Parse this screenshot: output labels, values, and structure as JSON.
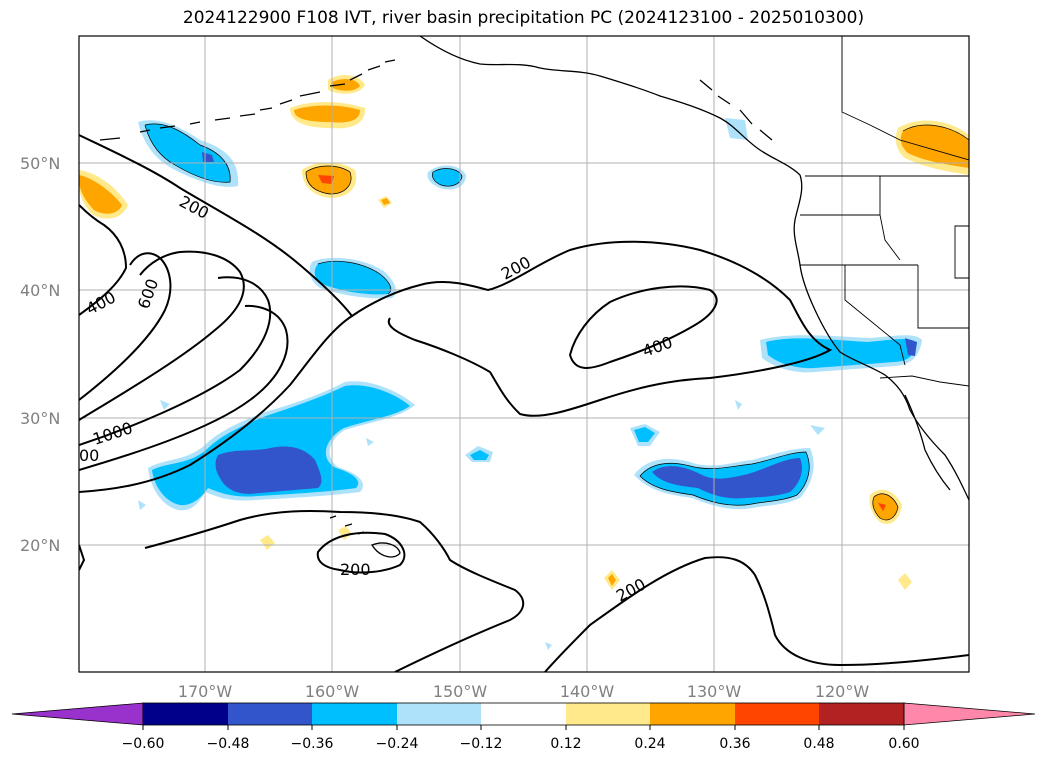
{
  "title": "2024122900 F108 IVT, river basin precipitation PC (2024123100 - 2025010300)",
  "lat_labels": [
    "50°N",
    "40°N",
    "30°N",
    "20°N"
  ],
  "lon_labels": [
    "170°W",
    "160°W",
    "150°W",
    "140°W",
    "130°W",
    "120°W"
  ],
  "contour_labels": [
    "200",
    "200",
    "400",
    "600",
    "1000",
    "400",
    "200",
    "200",
    "00"
  ],
  "colorbar": {
    "tick_labels": [
      "−0.60",
      "−0.48",
      "−0.36",
      "−0.24",
      "−0.12",
      "0.12",
      "0.24",
      "0.36",
      "0.48",
      "0.60"
    ],
    "colors": [
      "#9932cc",
      "#00008b",
      "#3355cc",
      "#00bfff",
      "#aee2fa",
      "#ffffff",
      "#ffe98a",
      "#ffa500",
      "#ff4500",
      "#b22222",
      "#ff88aa"
    ]
  },
  "shading_colors": {
    "light_blue": "#aee2fa",
    "blue": "#00bfff",
    "dark_blue": "#3355cc",
    "light_yellow": "#ffe98a",
    "orange": "#ffa500",
    "red_orange": "#ff4500"
  }
}
